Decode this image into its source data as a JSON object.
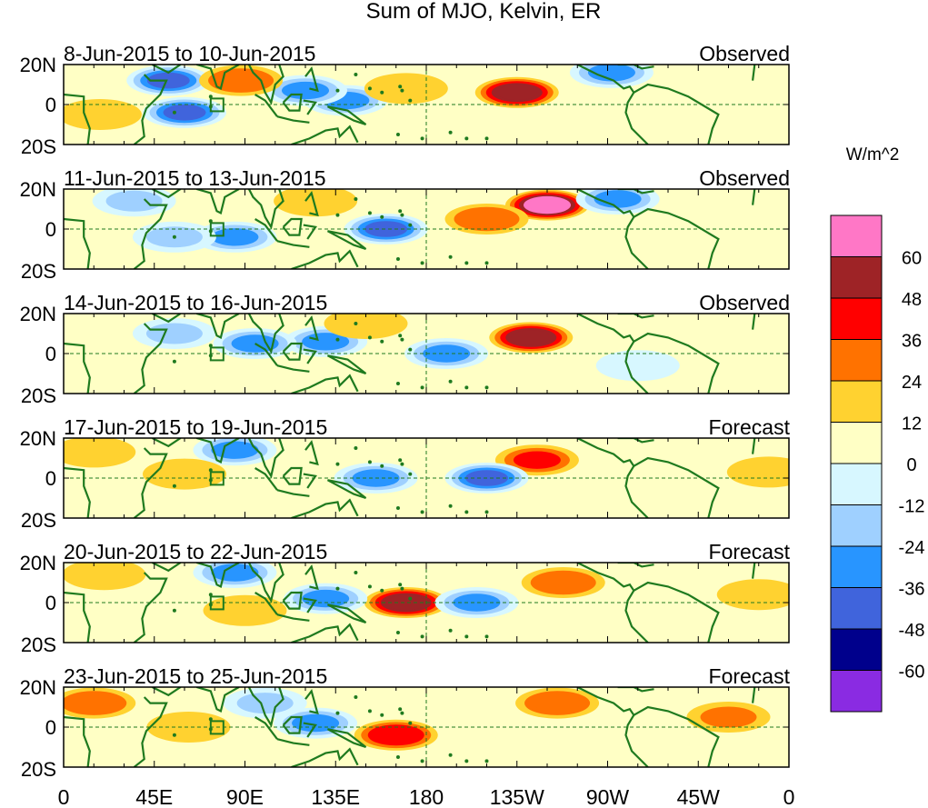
{
  "chart_data": {
    "type": "heatmap",
    "title": "Sum of MJO, Kelvin, ER",
    "colorbar": {
      "unit": "W/m^2",
      "levels": [
        60,
        48,
        36,
        24,
        12,
        0,
        -12,
        -24,
        -36,
        -48,
        -60
      ],
      "colors": [
        "#ff77c6",
        "#9e2326",
        "#ff0000",
        "#ff7200",
        "#ffd230",
        "#ffffc5",
        "#d7f7ff",
        "#9fd0ff",
        "#2895ff",
        "#4064dc",
        "#00008c",
        "#8a2be2"
      ]
    },
    "x_ticks": [
      "0",
      "45E",
      "90E",
      "135E",
      "180",
      "135W",
      "90W",
      "45W",
      "0"
    ],
    "y_ticks": [
      "20N",
      "0",
      "20S"
    ],
    "panels": [
      {
        "period": "8-Jun-2015 to 10-Jun-2015",
        "status": "Observed",
        "features": [
          {
            "lon": 140,
            "lat": 2,
            "value": -30
          },
          {
            "lon": 120,
            "lat": 7,
            "value": -35
          },
          {
            "lon": 60,
            "lat": -4,
            "value": -45
          },
          {
            "lon": 52,
            "lat": 12,
            "value": -40
          },
          {
            "lon": 88,
            "lat": 12,
            "value": 32
          },
          {
            "lon": 225,
            "lat": 6,
            "value": 55
          },
          {
            "lon": 170,
            "lat": 8,
            "value": 14
          },
          {
            "lon": 18,
            "lat": -5,
            "value": 20
          },
          {
            "lon": 272,
            "lat": 16,
            "value": -30
          }
        ]
      },
      {
        "period": "11-Jun-2015 to 13-Jun-2015",
        "status": "Observed",
        "features": [
          {
            "lon": 240,
            "lat": 12,
            "value": 62
          },
          {
            "lon": 210,
            "lat": 5,
            "value": 28
          },
          {
            "lon": 160,
            "lat": 0,
            "value": -40
          },
          {
            "lon": 85,
            "lat": -4,
            "value": -35
          },
          {
            "lon": 55,
            "lat": -4,
            "value": -18
          },
          {
            "lon": 35,
            "lat": 14,
            "value": -20
          },
          {
            "lon": 275,
            "lat": 15,
            "value": -25
          },
          {
            "lon": 125,
            "lat": 14,
            "value": 15
          }
        ]
      },
      {
        "period": "14-Jun-2015 to 16-Jun-2015",
        "status": "Observed",
        "features": [
          {
            "lon": 232,
            "lat": 8,
            "value": 55
          },
          {
            "lon": 190,
            "lat": 0,
            "value": -28
          },
          {
            "lon": 130,
            "lat": 6,
            "value": -30
          },
          {
            "lon": 95,
            "lat": 5,
            "value": -25
          },
          {
            "lon": 55,
            "lat": 10,
            "value": -20
          },
          {
            "lon": 150,
            "lat": 15,
            "value": 16
          },
          {
            "lon": 18,
            "lat": 2,
            "value": 10
          },
          {
            "lon": 285,
            "lat": -6,
            "value": -12
          }
        ]
      },
      {
        "period": "17-Jun-2015 to 19-Jun-2015",
        "status": "Forecast",
        "features": [
          {
            "lon": 235,
            "lat": 9,
            "value": 36
          },
          {
            "lon": 210,
            "lat": 0,
            "value": -45
          },
          {
            "lon": 155,
            "lat": 0,
            "value": -25
          },
          {
            "lon": 85,
            "lat": 14,
            "value": -28
          },
          {
            "lon": 60,
            "lat": 2,
            "value": 14
          },
          {
            "lon": 15,
            "lat": 13,
            "value": 14
          },
          {
            "lon": 350,
            "lat": 3,
            "value": 20
          }
        ]
      },
      {
        "period": "20-Jun-2015 to 22-Jun-2015",
        "status": "Forecast",
        "features": [
          {
            "lon": 170,
            "lat": 0,
            "value": 50
          },
          {
            "lon": 205,
            "lat": 0,
            "value": -30
          },
          {
            "lon": 130,
            "lat": 2,
            "value": -30
          },
          {
            "lon": 85,
            "lat": 15,
            "value": -25
          },
          {
            "lon": 248,
            "lat": 10,
            "value": 30
          },
          {
            "lon": 90,
            "lat": -4,
            "value": 18
          },
          {
            "lon": 345,
            "lat": 4,
            "value": 22
          },
          {
            "lon": 20,
            "lat": 14,
            "value": 12
          }
        ]
      },
      {
        "period": "23-Jun-2015 to 25-Jun-2015",
        "status": "Forecast",
        "features": [
          {
            "lon": 165,
            "lat": -4,
            "value": 45
          },
          {
            "lon": 125,
            "lat": 2,
            "value": -32
          },
          {
            "lon": 245,
            "lat": 12,
            "value": 26
          },
          {
            "lon": 15,
            "lat": 12,
            "value": 26
          },
          {
            "lon": 330,
            "lat": 5,
            "value": 24
          },
          {
            "lon": 100,
            "lat": 12,
            "value": -15
          },
          {
            "lon": 62,
            "lat": 0,
            "value": 14
          }
        ]
      }
    ]
  }
}
